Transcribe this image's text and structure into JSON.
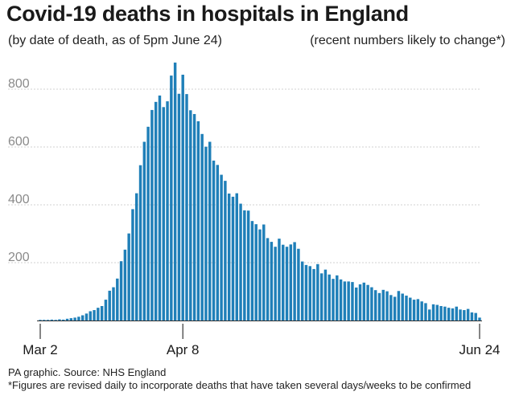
{
  "chart_data": {
    "type": "bar",
    "title": "Covid-19 deaths in hospitals in England",
    "subtitle_left": "(by date of death, as of 5pm June 24)",
    "subtitle_right": "(recent numbers likely to change*)",
    "xlabel": "",
    "ylabel": "",
    "ylim": [
      0,
      900
    ],
    "yticks": [
      200,
      400,
      600,
      800
    ],
    "x_tick_labels": [
      {
        "label": "Mar 2",
        "index": 0
      },
      {
        "label": "Apr 8",
        "index": 37
      },
      {
        "label": "Jun 24",
        "index": 114
      }
    ],
    "x_start": "Mar 2",
    "x_end": "Jun 24",
    "bar_color": "#1f7fb8",
    "values": [
      2,
      2,
      1,
      3,
      1,
      4,
      3,
      6,
      8,
      10,
      13,
      18,
      24,
      32,
      36,
      44,
      50,
      72,
      103,
      115,
      145,
      205,
      245,
      301,
      385,
      440,
      537,
      618,
      670,
      728,
      756,
      778,
      738,
      758,
      847,
      892,
      784,
      850,
      783,
      727,
      714,
      689,
      645,
      601,
      618,
      553,
      538,
      504,
      483,
      439,
      428,
      440,
      404,
      381,
      380,
      344,
      333,
      315,
      332,
      285,
      272,
      255,
      283,
      262,
      255,
      263,
      271,
      248,
      204,
      192,
      188,
      178,
      195,
      163,
      176,
      159,
      144,
      156,
      142,
      135,
      135,
      133,
      114,
      125,
      131,
      123,
      115,
      105,
      95,
      106,
      101,
      88,
      82,
      102,
      93,
      86,
      79,
      72,
      74,
      66,
      60,
      38,
      56,
      54,
      50,
      48,
      44,
      42,
      48,
      38,
      36,
      40,
      28,
      26,
      10
    ]
  },
  "footer": {
    "source": "PA graphic. Source: NHS England",
    "note": "*Figures are revised daily to incorporate deaths that have taken several days/weeks to be confirmed"
  }
}
